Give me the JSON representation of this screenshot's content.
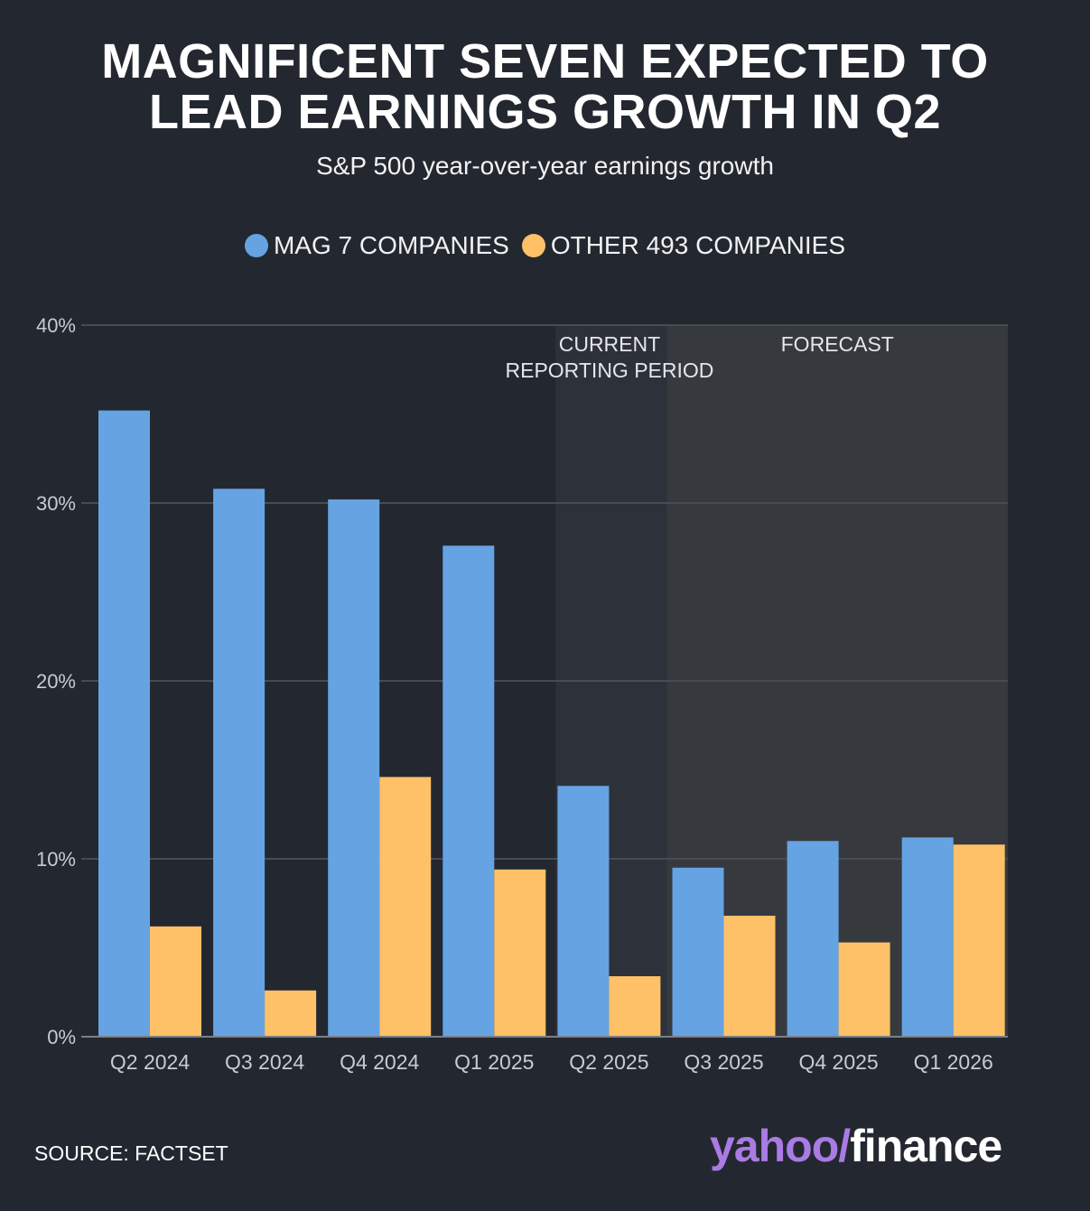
{
  "title_line1": "MAGNIFICENT SEVEN EXPECTED TO",
  "title_line2": "LEAD EARNINGS GROWTH IN Q2",
  "subtitle": "S&P 500 year-over-year earnings growth",
  "source": "SOURCE: FACTSET",
  "logo": {
    "part1": "yahoo",
    "slash": "/",
    "part2": "finance"
  },
  "colors": {
    "background": "#232830",
    "mag7": "#66a3e3",
    "other": "#fec167",
    "current_shade": "#2d3139",
    "forecast_shade": "#363a3f",
    "grid": "#474b52",
    "axis_text": "#c8cbd0"
  },
  "chart_data": {
    "type": "bar",
    "title": "MAGNIFICENT SEVEN EXPECTED TO LEAD EARNINGS GROWTH IN Q2",
    "subtitle": "S&P 500 year-over-year earnings growth",
    "categories": [
      "Q2 2024",
      "Q3 2024",
      "Q4 2024",
      "Q1 2025",
      "Q2 2025",
      "Q3 2025",
      "Q4 2025",
      "Q1 2026"
    ],
    "series": [
      {
        "name": "MAG 7 COMPANIES",
        "color": "#66a3e3",
        "values": [
          35.2,
          30.8,
          30.2,
          27.6,
          14.1,
          9.5,
          11.0,
          11.2
        ]
      },
      {
        "name": "OTHER 493 COMPANIES",
        "color": "#fec167",
        "values": [
          6.2,
          2.6,
          14.6,
          9.4,
          3.4,
          6.8,
          5.3,
          10.8
        ]
      }
    ],
    "ylim": [
      0,
      40
    ],
    "yticks": [
      0,
      10,
      20,
      30,
      40
    ],
    "ytick_labels": [
      "0%",
      "10%",
      "20%",
      "30%",
      "40%"
    ],
    "xlabel": "",
    "ylabel": "",
    "legend_position": "top-center",
    "grid": true,
    "regions": [
      {
        "label_lines": [
          "CURRENT",
          "REPORTING PERIOD"
        ],
        "start_category": "Q2 2025",
        "end_category": "Q2 2025",
        "kind": "current"
      },
      {
        "label_lines": [
          "FORECAST"
        ],
        "start_category": "Q3 2025",
        "end_category": "Q1 2026",
        "kind": "forecast"
      }
    ]
  }
}
